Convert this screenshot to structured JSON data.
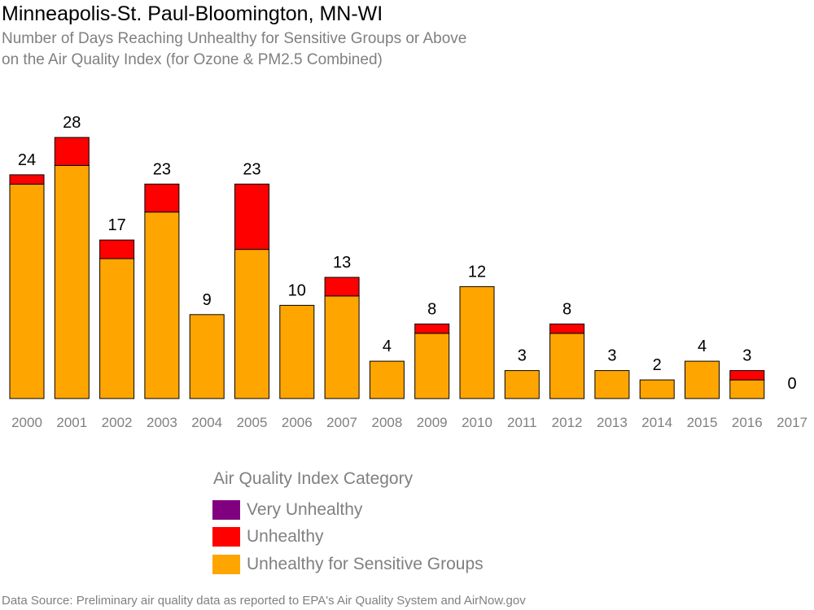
{
  "chart_data": {
    "type": "bar",
    "stacked": true,
    "title": "Minneapolis-St. Paul-Bloomington, MN-WI",
    "subtitle_lines": [
      "Number of Days Reaching Unhealthy for Sensitive Groups or Above",
      "on the Air Quality Index (for Ozone & PM2.5 Combined)"
    ],
    "categories": [
      "2000",
      "2001",
      "2002",
      "2003",
      "2004",
      "2005",
      "2006",
      "2007",
      "2008",
      "2009",
      "2010",
      "2011",
      "2012",
      "2013",
      "2014",
      "2015",
      "2016",
      "2017"
    ],
    "series": [
      {
        "name": "Unhealthy for Sensitive Groups",
        "color": "#FFA500",
        "values": [
          23,
          25,
          15,
          20,
          9,
          16,
          10,
          11,
          4,
          7,
          12,
          3,
          7,
          3,
          2,
          4,
          2,
          0
        ]
      },
      {
        "name": "Unhealthy",
        "color": "#FF0000",
        "values": [
          1,
          3,
          2,
          3,
          0,
          7,
          0,
          2,
          0,
          1,
          0,
          0,
          1,
          0,
          0,
          0,
          1,
          0
        ]
      },
      {
        "name": "Very Unhealthy",
        "color": "#800080",
        "values": [
          0,
          0,
          0,
          0,
          0,
          0,
          0,
          0,
          0,
          0,
          0,
          0,
          0,
          0,
          0,
          0,
          0,
          0
        ]
      }
    ],
    "totals": [
      "24",
      "28",
      "17",
      "23",
      "9",
      "23",
      "10",
      "13",
      "4",
      "8",
      "12",
      "3",
      "8",
      "3",
      "2",
      "4",
      "3",
      "0"
    ],
    "ylim": [
      0,
      28
    ],
    "grid": false,
    "legend": {
      "title": "Air Quality Index Category",
      "position": "bottom-center",
      "items": [
        {
          "label": "Very Unhealthy",
          "color": "#800080"
        },
        {
          "label": "Unhealthy",
          "color": "#FF0000"
        },
        {
          "label": "Unhealthy for Sensitive Groups",
          "color": "#FFA500"
        }
      ]
    },
    "source": "Data Source: Preliminary air quality data as reported to EPA's Air Quality System and AirNow.gov"
  }
}
